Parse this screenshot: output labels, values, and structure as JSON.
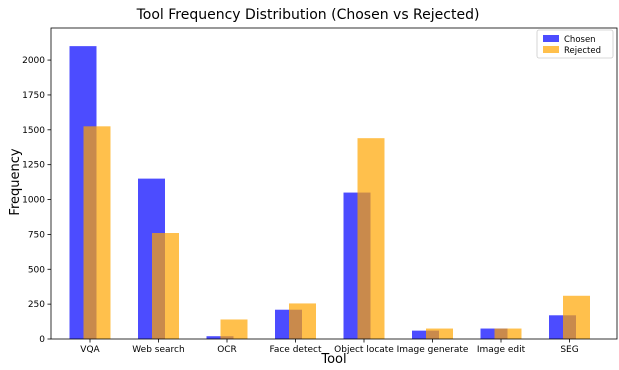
{
  "chart_data": {
    "type": "bar",
    "title": "Tool Frequency Distribution (Chosen vs Rejected)",
    "xlabel": "Tool",
    "ylabel": "Frequency",
    "categories": [
      "VQA",
      "Web search",
      "OCR",
      "Face detect",
      "Object locate",
      "Image generate",
      "Image edit",
      "SEG"
    ],
    "series": [
      {
        "name": "Chosen",
        "values": [
          2100,
          1150,
          20,
          210,
          1050,
          60,
          75,
          170
        ],
        "color": "#0000ff"
      },
      {
        "name": "Rejected",
        "values": [
          1525,
          760,
          140,
          255,
          1440,
          75,
          75,
          310
        ],
        "color": "#ffa500"
      }
    ],
    "ylim": [
      0,
      2230
    ],
    "yticks": [
      0,
      250,
      500,
      750,
      1000,
      1250,
      1500,
      1750,
      2000
    ],
    "ytick_labels": [
      "0",
      "250",
      "500",
      "750",
      "1000",
      "1250",
      "1500",
      "1750",
      "2000"
    ],
    "legend_position": "top-right",
    "grid": false
  }
}
